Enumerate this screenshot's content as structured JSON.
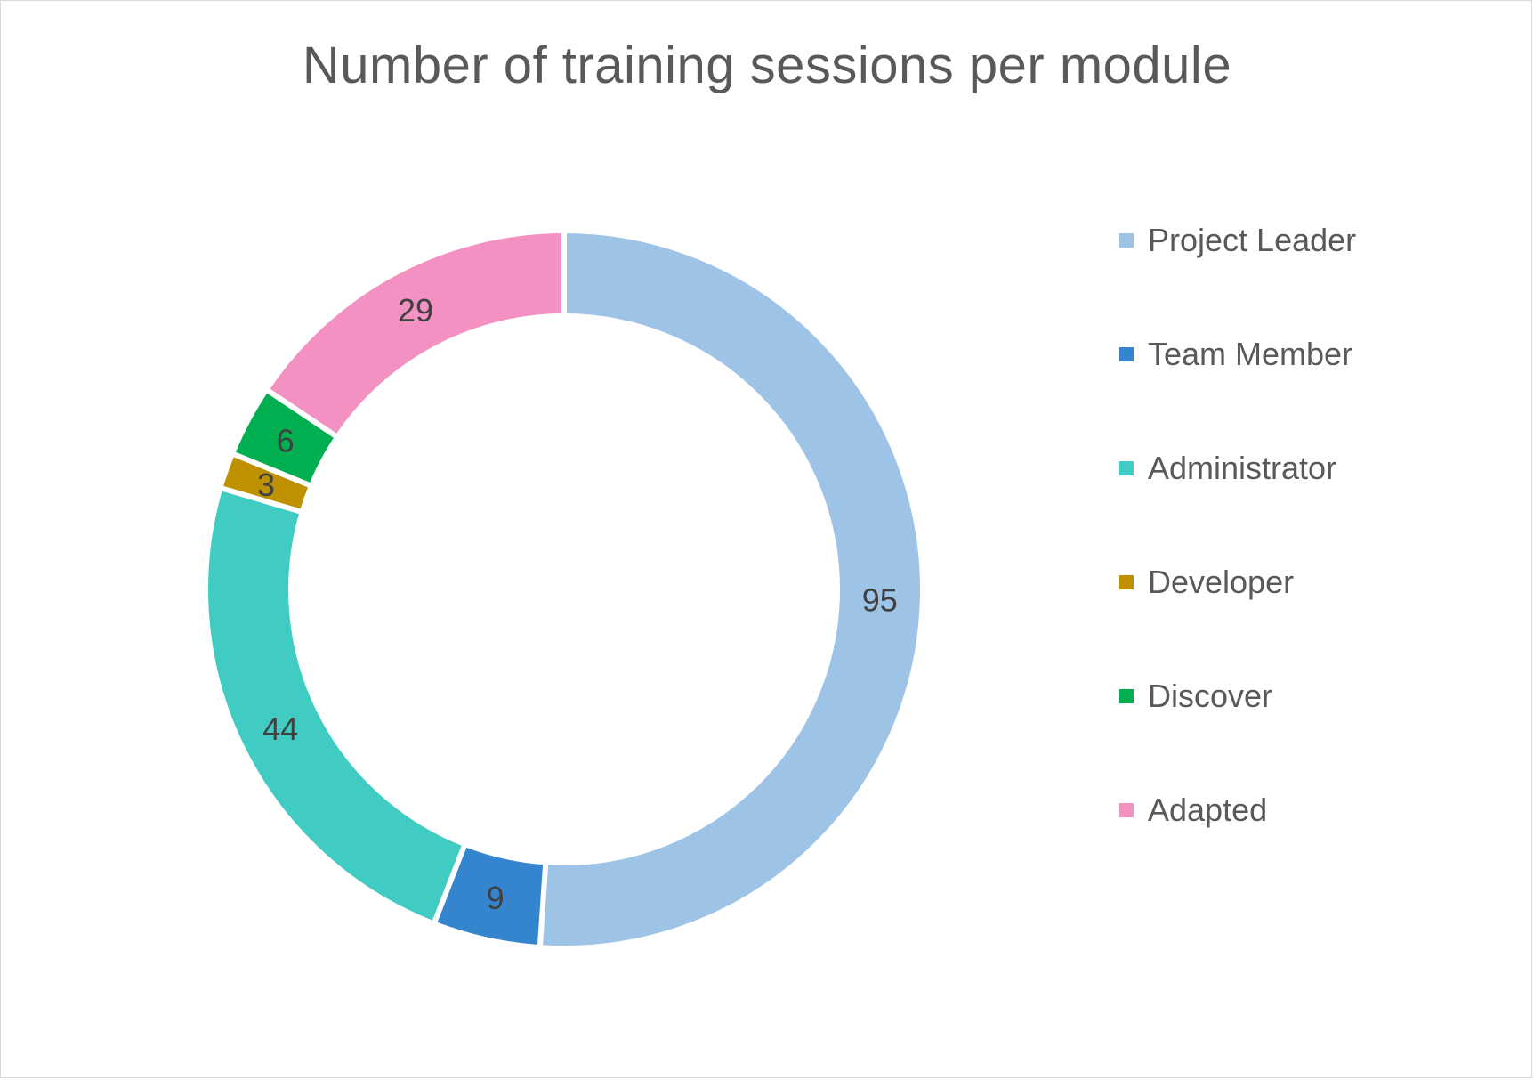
{
  "chart_data": {
    "type": "pie",
    "title": "Number of training sessions per module",
    "categories": [
      "Project Leader",
      "Team Member",
      "Administrator",
      "Developer",
      "Discover",
      "Adapted"
    ],
    "values": [
      95,
      9,
      44,
      3,
      6,
      29
    ],
    "data_labels": [
      "95",
      "9",
      "44",
      "3",
      "6",
      "29"
    ],
    "colors": [
      "#9DC3E6",
      "#3584CE",
      "#40CBC3",
      "#BF9000",
      "#00B050",
      "#F291C2"
    ],
    "donut": true,
    "legend_position": "right"
  }
}
